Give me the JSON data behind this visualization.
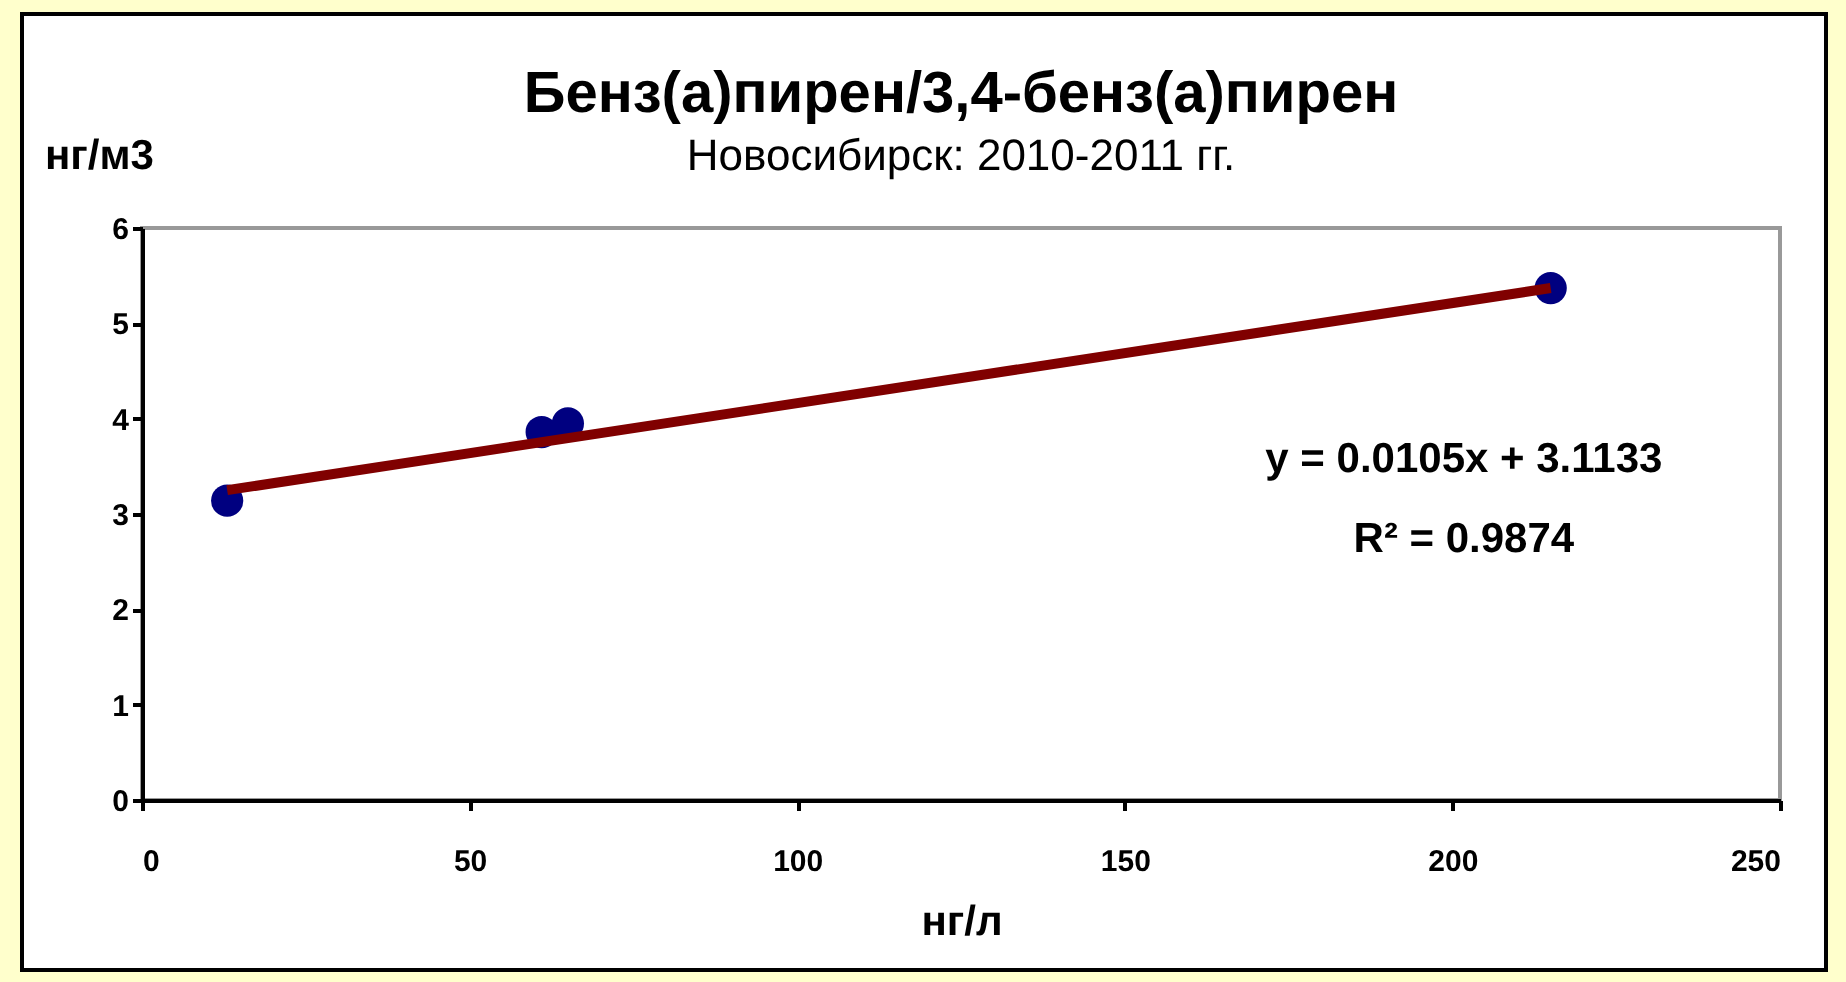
{
  "chart_data": {
    "type": "scatter",
    "title": "Бенз(а)пирен/3,4-бенз(а)пирен",
    "subtitle": "Новосибирск: 2010-2011 гг.",
    "xlabel": "нг/л",
    "ylabel": "нг/м3",
    "annotations": [
      "y = 0.0105x + 3.1133",
      "R² = 0.9874"
    ],
    "series": [
      {
        "color": "#000080",
        "marker": "circle",
        "x": [
          13,
          61,
          65,
          215
        ],
        "values": [
          3.14,
          3.86,
          3.95,
          5.37
        ]
      },
      {
        "type": "line",
        "color": "#800000",
        "x": [
          13,
          215
        ],
        "values": [
          3.25,
          5.37
        ]
      }
    ],
    "xlim": [
      0,
      250
    ],
    "xticks": [
      0,
      50,
      100,
      150,
      200,
      250
    ],
    "ylim": [
      0,
      6
    ],
    "yticks": [
      0,
      1,
      2,
      3,
      4,
      5,
      6
    ],
    "grid": false
  }
}
